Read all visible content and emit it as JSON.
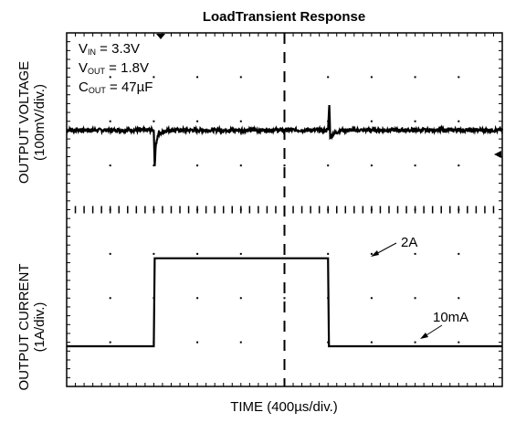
{
  "chart_data": [
    {
      "type": "line",
      "title": "LoadTransient Response",
      "xlabel": "TIME (400µs/div.)",
      "ylabel": "OUTPUT VOLTAGE (100mV/div.)",
      "x_unit": "div",
      "grid": true,
      "annotations": [
        {
          "label": "V",
          "sub": "IN",
          "text": " = 3.3V"
        },
        {
          "label": "V",
          "sub": "OUT",
          "text": " = 1.8V"
        },
        {
          "label": "C",
          "sub": "OUT",
          "text": " = 47µF"
        }
      ],
      "series": [
        {
          "x": [
            0,
            2.0,
            2.02,
            2.05,
            2.1,
            2.3,
            6.0,
            6.03,
            6.05,
            6.1,
            6.3,
            10
          ],
          "y_div": [
            0,
            0,
            -0.8,
            -0.3,
            -0.1,
            0,
            0,
            0.6,
            -0.15,
            -0.1,
            0,
            0
          ]
        }
      ]
    },
    {
      "type": "line",
      "ylabel": "OUTPUT CURRENT (1A/div.)",
      "y_unit": "A",
      "annotations_text": [
        "2A",
        "10mA"
      ],
      "series": [
        {
          "x": [
            0,
            2.0,
            2.02,
            6.0,
            6.02,
            10
          ],
          "y": [
            0.01,
            0.01,
            2,
            2,
            0.01,
            0.01
          ]
        }
      ]
    }
  ],
  "labels": {
    "title": "LoadTransient Response",
    "xlabel": "TIME (400µs/div.)",
    "y_top_line1": "OUTPUT VOLTAGE",
    "y_top_line2": "(100mV/div.)",
    "y_bot_line1": "OUTPUT CURRENT",
    "y_bot_line2": "(1A/div.)",
    "vin_label": "V",
    "vin_sub": "IN",
    "vin_text": " = 3.3V",
    "vout_label": "V",
    "vout_sub": "OUT",
    "vout_text": " = 1.8V",
    "cout_label": "C",
    "cout_sub": "OUT",
    "cout_text": " = 47µF",
    "ann_2a": "2A",
    "ann_10ma": "10mA"
  }
}
